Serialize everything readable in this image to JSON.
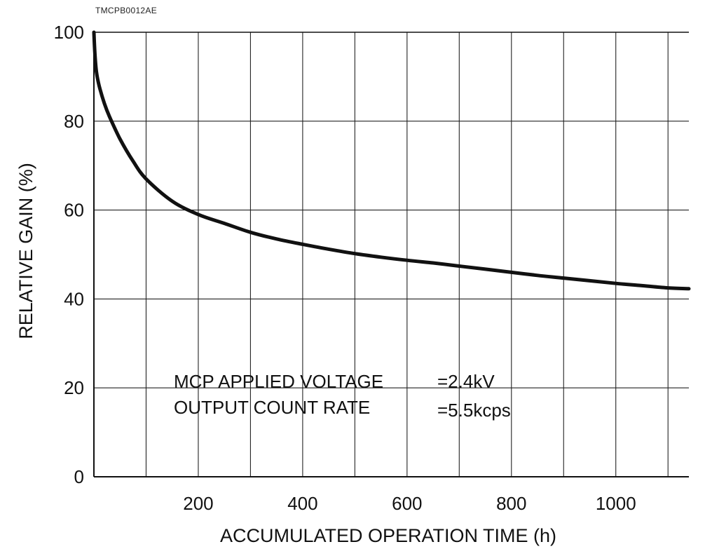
{
  "document_code": "TMCPB0012AE",
  "chart_data": {
    "type": "line",
    "title": "",
    "xlabel": "ACCUMULATED OPERATION TIME (h)",
    "ylabel": "RELATIVE GAIN (%)",
    "xlim": [
      0,
      1140
    ],
    "ylim": [
      0,
      100
    ],
    "x_tick_labels": [
      "200",
      "400",
      "600",
      "800",
      "1000"
    ],
    "x_tick_values": [
      200,
      400,
      600,
      800,
      1000
    ],
    "y_tick_labels": [
      "0",
      "20",
      "40",
      "60",
      "80",
      "100"
    ],
    "y_tick_values": [
      0,
      20,
      40,
      60,
      80,
      100
    ],
    "grid": true,
    "annotation": {
      "line1_label": "MCP APPLIED VOLTAGE",
      "line1_value": "=2.4kV",
      "line2_label": "OUTPUT COUNT RATE",
      "line2_value": "=5.5kcps"
    },
    "series": [
      {
        "color": "#111111",
        "x": [
          0,
          2,
          5,
          10,
          20,
          30,
          50,
          75,
          100,
          150,
          200,
          250,
          300,
          350,
          400,
          450,
          500,
          550,
          600,
          650,
          700,
          750,
          800,
          850,
          900,
          950,
          1000,
          1050,
          1100,
          1140
        ],
        "y": [
          100,
          95,
          91,
          88,
          84,
          81,
          76,
          71,
          67,
          62,
          59,
          57,
          55,
          53.5,
          52.3,
          51.2,
          50.2,
          49.4,
          48.7,
          48.1,
          47.4,
          46.7,
          46,
          45.3,
          44.7,
          44.1,
          43.5,
          43,
          42.5,
          42.3
        ]
      }
    ]
  }
}
